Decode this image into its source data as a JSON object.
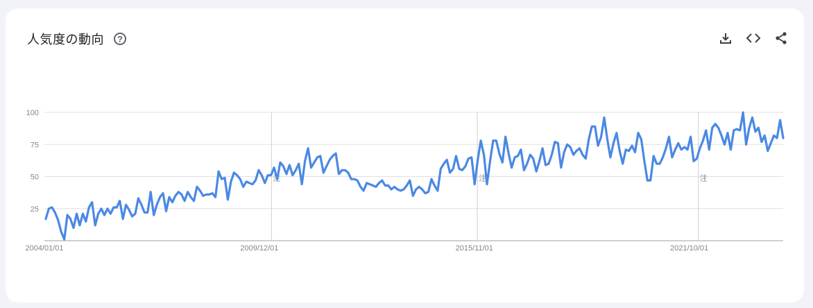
{
  "card": {
    "title": "人気度の動向",
    "help_glyph": "?",
    "actions": [
      {
        "name": "download-icon"
      },
      {
        "name": "embed-code-icon"
      },
      {
        "name": "share-icon"
      }
    ]
  },
  "colors": {
    "line": "#4a88e4",
    "grid": "#e0e0e0",
    "text": "#80868b"
  },
  "chart_data": {
    "type": "line",
    "title": "人気度の動向",
    "ylim": [
      0,
      100
    ],
    "yticks": [
      25,
      50,
      75,
      100
    ],
    "xticks": [
      "2004/01/01",
      "2009/12/01",
      "2015/11/01",
      "2021/10/01"
    ],
    "x_start": "2004/01/01",
    "x_end": "2024/05/01",
    "annotations": [
      {
        "date": "2010/04/01",
        "label": "注"
      },
      {
        "date": "2015/12/01",
        "label": "注"
      },
      {
        "date": "2022/01/01",
        "label": "注"
      }
    ],
    "grid": true,
    "series": [
      {
        "values": [
          17,
          25,
          26,
          22,
          16,
          7,
          1,
          20,
          17,
          10,
          21,
          12,
          21,
          15,
          26,
          30,
          12,
          21,
          25,
          20,
          25,
          21,
          26,
          26,
          31,
          17,
          28,
          24,
          19,
          21,
          33,
          28,
          22,
          22,
          38,
          20,
          28,
          34,
          37,
          23,
          34,
          30,
          35,
          38,
          36,
          31,
          38,
          34,
          31,
          42,
          39,
          35,
          36,
          36,
          37,
          34,
          54,
          48,
          49,
          32,
          46,
          53,
          51,
          48,
          42,
          46,
          45,
          44,
          47,
          55,
          51,
          45,
          51,
          51,
          57,
          48,
          61,
          58,
          52,
          59,
          51,
          55,
          60,
          44,
          62,
          72,
          57,
          61,
          65,
          66,
          53,
          58,
          63,
          66,
          68,
          52,
          55,
          55,
          53,
          48,
          48,
          47,
          42,
          39,
          45,
          44,
          43,
          42,
          45,
          47,
          43,
          43,
          40,
          42,
          40,
          39,
          40,
          43,
          47,
          35,
          40,
          42,
          40,
          37,
          38,
          48,
          43,
          39,
          56,
          60,
          63,
          53,
          56,
          66,
          56,
          55,
          58,
          64,
          65,
          44,
          63,
          78,
          67,
          44,
          62,
          78,
          78,
          68,
          61,
          81,
          68,
          57,
          65,
          66,
          71,
          55,
          60,
          67,
          64,
          54,
          62,
          72,
          59,
          60,
          67,
          77,
          76,
          57,
          69,
          75,
          73,
          67,
          70,
          72,
          67,
          64,
          79,
          89,
          89,
          74,
          81,
          96,
          79,
          65,
          76,
          84,
          70,
          60,
          71,
          70,
          74,
          69,
          84,
          79,
          62,
          47,
          47,
          66,
          60,
          60,
          65,
          72,
          81,
          65,
          71,
          76,
          71,
          73,
          71,
          81,
          62,
          64,
          72,
          78,
          86,
          71,
          88,
          91,
          88,
          82,
          75,
          84,
          71,
          86,
          87,
          86,
          100,
          75,
          88,
          96,
          85,
          88,
          77,
          82,
          70,
          76,
          82,
          80,
          94,
          80
        ]
      }
    ]
  }
}
